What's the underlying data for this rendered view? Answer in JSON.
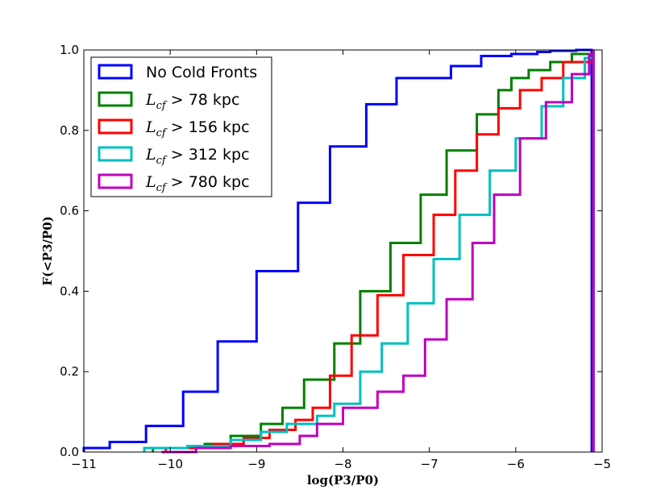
{
  "chart_data": {
    "type": "line",
    "step": true,
    "title": "",
    "xlabel": "log(P3/P0)",
    "ylabel": "F(<P3/P0)",
    "xlim": [
      -11,
      -5
    ],
    "ylim": [
      0.0,
      1.0
    ],
    "xticks": [
      -11,
      -10,
      -9,
      -8,
      -7,
      -6,
      -5
    ],
    "xtick_labels": [
      "−11",
      "−10",
      "−9",
      "−8",
      "−7",
      "−6",
      "−5"
    ],
    "yticks": [
      0.0,
      0.2,
      0.4,
      0.6,
      0.8,
      1.0
    ],
    "ytick_labels": [
      "0.0",
      "0.2",
      "0.4",
      "0.6",
      "0.8",
      "1.0"
    ],
    "grid": false,
    "legend_position": "top-left",
    "series": [
      {
        "name": "No Cold Fronts",
        "legend_math": "",
        "legend_rest": "No Cold Fronts",
        "color": "#0000ff",
        "x": [
          -11.0,
          -10.7,
          -10.28,
          -9.85,
          -9.45,
          -9.0,
          -8.52,
          -8.15,
          -7.73,
          -7.38,
          -7.1,
          -6.75,
          -6.4,
          -6.05,
          -5.75,
          -5.6,
          -5.3,
          -5.12
        ],
        "y": [
          0.01,
          0.025,
          0.065,
          0.15,
          0.275,
          0.45,
          0.62,
          0.76,
          0.865,
          0.93,
          0.93,
          0.96,
          0.985,
          0.99,
          0.995,
          0.998,
          1.0,
          1.0
        ]
      },
      {
        "name": "L_cf > 78 kpc",
        "legend_math": "L",
        "legend_sub": "cf",
        "legend_rest": " > 78 kpc",
        "color": "#008000",
        "x": [
          -10.2,
          -9.6,
          -9.3,
          -8.95,
          -8.7,
          -8.45,
          -8.1,
          -7.8,
          -7.45,
          -7.1,
          -6.8,
          -6.45,
          -6.2,
          -6.05,
          -5.85,
          -5.6,
          -5.35,
          -5.1
        ],
        "y": [
          0.01,
          0.02,
          0.04,
          0.07,
          0.11,
          0.18,
          0.27,
          0.4,
          0.52,
          0.64,
          0.75,
          0.84,
          0.9,
          0.93,
          0.95,
          0.97,
          0.99,
          1.0
        ]
      },
      {
        "name": "L_cf > 156 kpc",
        "legend_math": "L",
        "legend_sub": "cf",
        "legend_rest": " > 156 kpc",
        "color": "#ff0000",
        "x": [
          -10.05,
          -9.5,
          -9.15,
          -8.85,
          -8.55,
          -8.35,
          -8.15,
          -7.9,
          -7.6,
          -7.3,
          -6.95,
          -6.7,
          -6.45,
          -6.2,
          -5.95,
          -5.7,
          -5.45,
          -5.1
        ],
        "y": [
          0.01,
          0.02,
          0.035,
          0.055,
          0.08,
          0.11,
          0.19,
          0.29,
          0.39,
          0.49,
          0.59,
          0.7,
          0.79,
          0.855,
          0.9,
          0.93,
          0.97,
          1.0
        ]
      },
      {
        "name": "L_cf > 312 kpc",
        "legend_math": "L",
        "legend_sub": "cf",
        "legend_rest": " > 312 kpc",
        "color": "#00bfbf",
        "x": [
          -10.3,
          -9.8,
          -9.3,
          -8.95,
          -8.65,
          -8.3,
          -8.1,
          -7.8,
          -7.55,
          -7.25,
          -6.95,
          -6.65,
          -6.3,
          -6.0,
          -5.7,
          -5.45,
          -5.2,
          -5.1
        ],
        "y": [
          0.01,
          0.015,
          0.03,
          0.05,
          0.07,
          0.09,
          0.12,
          0.2,
          0.27,
          0.37,
          0.48,
          0.59,
          0.7,
          0.78,
          0.86,
          0.93,
          0.98,
          1.0
        ]
      },
      {
        "name": "L_cf > 780 kpc",
        "legend_math": "L",
        "legend_sub": "cf",
        "legend_rest": " > 780 kpc",
        "color": "#bf00bf",
        "x": [
          -10.1,
          -9.7,
          -9.3,
          -8.85,
          -8.5,
          -8.3,
          -8.0,
          -7.6,
          -7.3,
          -7.05,
          -6.8,
          -6.5,
          -6.25,
          -5.95,
          -5.65,
          -5.35,
          -5.15,
          -5.1
        ],
        "y": [
          0.0,
          0.01,
          0.015,
          0.02,
          0.04,
          0.07,
          0.11,
          0.15,
          0.19,
          0.28,
          0.38,
          0.52,
          0.64,
          0.78,
          0.87,
          0.94,
          0.99,
          1.0
        ]
      }
    ]
  }
}
